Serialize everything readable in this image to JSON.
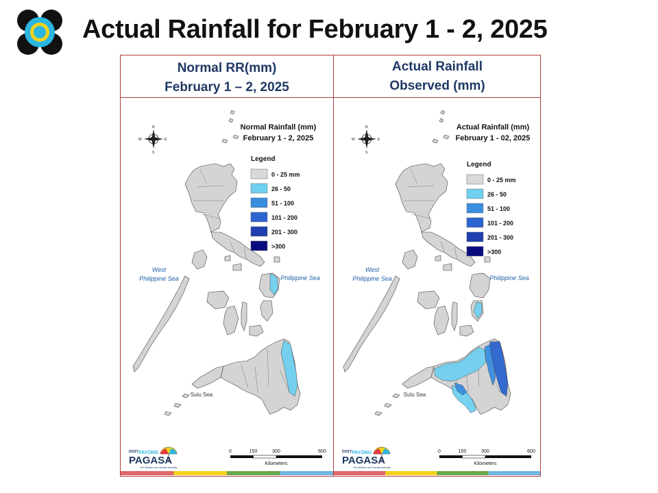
{
  "slide": {
    "title": "Actual Rainfall for February 1 - 2, 2025"
  },
  "panels": [
    {
      "header_line1": "Normal RR(mm)",
      "header_line2": "February 1 – 2, 2025",
      "map_title_line1": "Normal Rainfall (mm)",
      "map_title_line2": "February 1 - 2, 2025"
    },
    {
      "header_line1": "Actual Rainfall",
      "header_line2": "Observed (mm)",
      "map_title_line1": "Actual Rainfall (mm)",
      "map_title_line2": "February 1 - 02, 2025"
    }
  ],
  "legend": {
    "title": "Legend",
    "items": [
      {
        "label": "0 - 25 mm",
        "color": "#d9d9d9"
      },
      {
        "label": "26 - 50",
        "color": "#6fd0f0"
      },
      {
        "label": "51 - 100",
        "color": "#3a8ee0"
      },
      {
        "label": "101 - 200",
        "color": "#2c64d0"
      },
      {
        "label": "201 - 300",
        "color": "#1f3fb0"
      },
      {
        "label": ">300",
        "color": "#0b0b80"
      }
    ]
  },
  "labels": {
    "west_sea_line1": "West",
    "west_sea_line2": "Philippine Sea",
    "east_sea": "Philippine Sea",
    "south_sea": "Sulu Sea",
    "compass_n": "N",
    "compass_s": "S",
    "compass_e": "E",
    "compass_w": "W"
  },
  "scale": {
    "ticks": [
      "0",
      "150",
      "300",
      "600"
    ],
    "unit": "Kilometers"
  },
  "branding": {
    "dost": "DOST",
    "payong": "PAYONG",
    "agency": "PAGASA",
    "tagline": "The Weather and Climate Authority"
  }
}
